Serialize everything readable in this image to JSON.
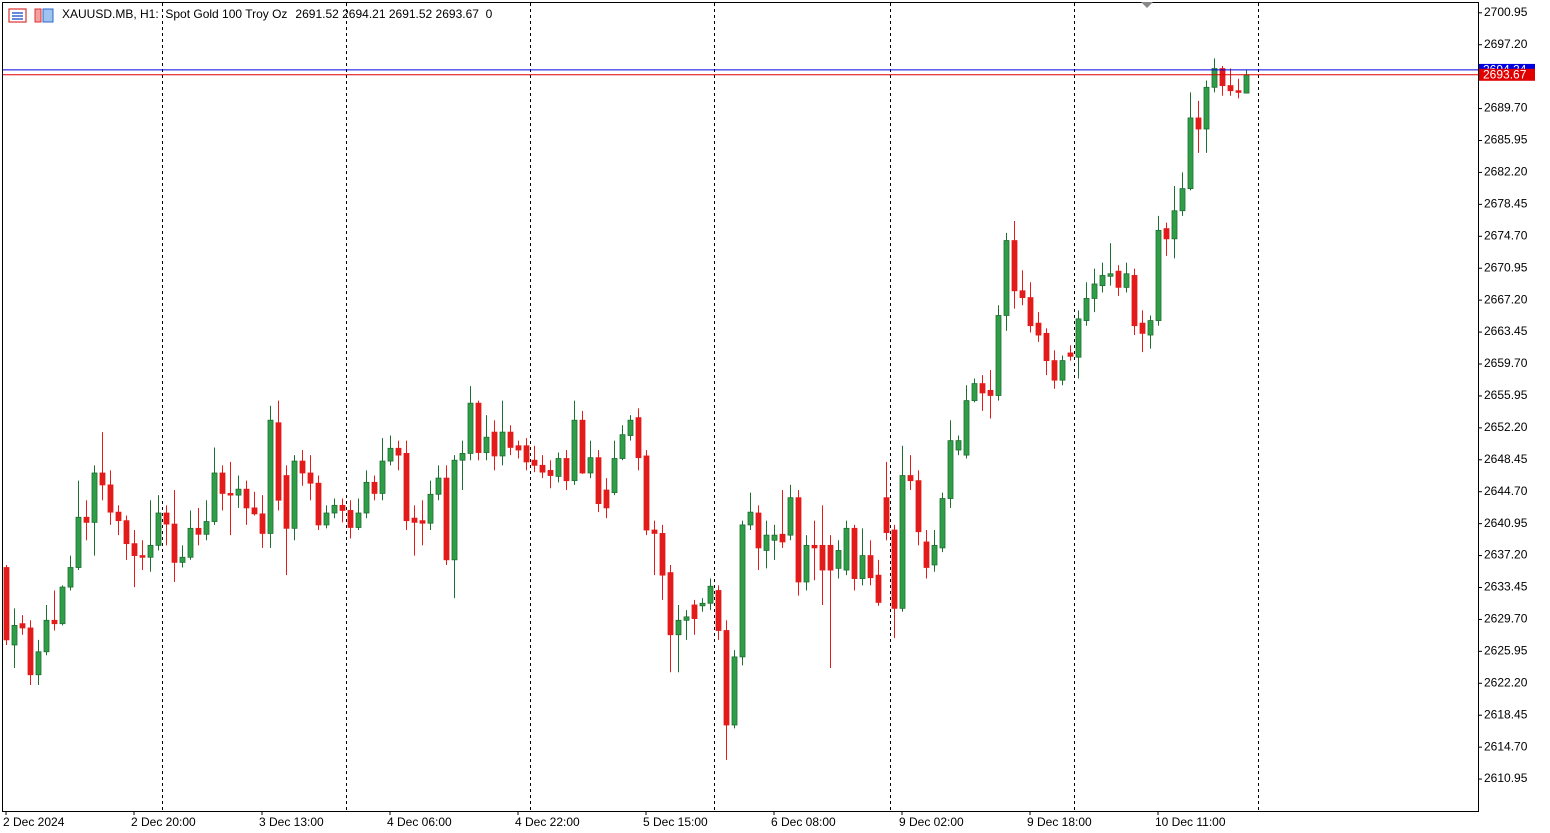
{
  "chart_data": {
    "type": "candlestick",
    "title": "XAUUSD.MB, H1:  Spot Gold 100 Troy Oz",
    "header_values": "2691.52 2694.21 2691.52 2693.67  0",
    "categories": [
      "2 Dec 2024",
      null,
      null,
      null,
      null,
      null,
      null,
      null,
      null,
      null,
      null,
      null,
      null,
      null,
      null,
      null,
      "2 Dec 20:00",
      null,
      null,
      null,
      null,
      null,
      null,
      null,
      null,
      null,
      null,
      null,
      null,
      null,
      null,
      null,
      "3 Dec 13:00",
      null,
      null,
      null,
      null,
      null,
      null,
      null,
      null,
      null,
      null,
      null,
      null,
      null,
      null,
      null,
      "4 Dec 06:00",
      null,
      null,
      null,
      null,
      null,
      null,
      null,
      null,
      null,
      null,
      null,
      null,
      null,
      null,
      null,
      "4 Dec 22:00",
      null,
      null,
      null,
      null,
      null,
      null,
      null,
      null,
      null,
      null,
      null,
      null,
      null,
      null,
      null,
      "5 Dec 15:00",
      null,
      null,
      null,
      null,
      null,
      null,
      null,
      null,
      null,
      null,
      null,
      null,
      null,
      null,
      null,
      "6 Dec 08:00",
      null,
      null,
      null,
      null,
      null,
      null,
      null,
      null,
      null,
      null,
      null,
      null,
      null,
      null,
      null,
      "9 Dec 02:00",
      null,
      null,
      null,
      null,
      null,
      null,
      null,
      null,
      null,
      null,
      null,
      null,
      null,
      null,
      null,
      "9 Dec 18:00",
      null,
      null,
      null,
      null,
      null,
      null,
      null,
      null,
      null,
      null,
      null,
      null,
      null,
      null,
      null,
      "10 Dec 11:00",
      null,
      null,
      null,
      null,
      null,
      null,
      null,
      null,
      null,
      null,
      null
    ],
    "open": [
      2635.8,
      2626.7,
      2629.2,
      2628.7,
      2623.2,
      2625.9,
      2629.6,
      2629.2,
      2633.5,
      2635.8,
      2641.7,
      2641.1,
      2646.9,
      2645.5,
      2642.3,
      2641.3,
      2638.6,
      2637.2,
      2637.0,
      2638.4,
      2642.2,
      2640.9,
      2636.4,
      2637.0,
      2640.4,
      2639.7,
      2641.2,
      2646.9,
      2644.5,
      2644.3,
      2645.0,
      2642.8,
      2642.1,
      2639.8,
      2652.8,
      2646.6,
      2640.4,
      2648.3,
      2646.9,
      2645.7,
      2640.8,
      2642.2,
      2643.1,
      2642.5,
      2640.5,
      2642.2,
      2645.8,
      2644.5,
      2648.3,
      2649.8,
      2649.2,
      2641.6,
      2641.3,
      2641.0,
      2644.4,
      2646.3,
      2636.7,
      2648.4,
      2649.2,
      2655.1,
      2649.3,
      2651.7,
      2648.9,
      2651.7,
      2650.1,
      2650.1,
      2648.4,
      2647.8,
      2647.2,
      2646.5,
      2648.6,
      2646.0,
      2653.1,
      2646.9,
      2648.7,
      2644.9,
      2644.6,
      2648.6,
      2651.3,
      2653.4,
      2648.9,
      2640.2,
      2639.8,
      2635.2,
      2627.9,
      2629.6,
      2631.4,
      2631.3,
      2631.6,
      2633.1,
      2628.4,
      2617.3,
      2625.3,
      2640.8,
      2642.2,
      2637.8,
      2639.0,
      2639.7,
      2639.6,
      2644.0,
      2634.1,
      2638.4,
      2638.4,
      2638.4,
      2635.7,
      2635.5,
      2640.4,
      2634.5,
      2637.2,
      2634.9,
      2644.0,
      2640.2,
      2631.0,
      2646.6,
      2646.0,
      2638.8,
      2636.1,
      2638.1,
      2643.9,
      2649.6,
      2649.0,
      2655.4,
      2657.4,
      2656.6,
      2656.0,
      2665.4,
      2674.2,
      2668.3,
      2667.5,
      2664.5,
      2663.3,
      2660.1,
      2657.8,
      2661.0,
      2660.5,
      2664.8,
      2667.4,
      2668.9,
      2670.0,
      2670.6,
      2668.7,
      2670.1,
      2664.5,
      2663.1,
      2664.8,
      2675.6,
      2674.4,
      2677.7,
      2680.3,
      2688.6,
      2687.3,
      2692.2,
      2694.4,
      2692.4,
      2691.8,
      2691.52
    ],
    "high": [
      2636.1,
      2631.0,
      2630.2,
      2629.6,
      2627.3,
      2631.4,
      2633.1,
      2633.7,
      2637.2,
      2646.0,
      2643.7,
      2647.8,
      2651.7,
      2647.2,
      2643.1,
      2641.9,
      2640.2,
      2639.0,
      2643.7,
      2644.3,
      2643.1,
      2644.9,
      2638.4,
      2642.5,
      2642.8,
      2643.7,
      2649.9,
      2647.8,
      2648.2,
      2646.6,
      2646.0,
      2644.7,
      2644.3,
      2654.8,
      2655.4,
      2647.8,
      2649.0,
      2649.6,
      2649.0,
      2646.6,
      2643.1,
      2643.9,
      2643.9,
      2643.7,
      2643.9,
      2647.2,
      2646.6,
      2651.0,
      2651.3,
      2650.7,
      2650.7,
      2643.1,
      2643.7,
      2646.0,
      2647.8,
      2647.8,
      2649.0,
      2650.7,
      2657.1,
      2655.4,
      2653.7,
      2653.1,
      2655.4,
      2652.5,
      2650.7,
      2651.0,
      2650.1,
      2649.0,
      2648.4,
      2649.3,
      2649.6,
      2655.4,
      2654.2,
      2650.7,
      2649.6,
      2646.3,
      2650.7,
      2652.5,
      2653.7,
      2654.5,
      2649.6,
      2641.3,
      2640.8,
      2636.1,
      2631.4,
      2630.8,
      2632.0,
      2632.2,
      2634.5,
      2633.7,
      2629.6,
      2626.1,
      2641.3,
      2644.6,
      2643.1,
      2641.3,
      2640.8,
      2644.9,
      2645.5,
      2644.9,
      2639.6,
      2641.3,
      2643.1,
      2639.6,
      2639.0,
      2641.3,
      2640.8,
      2640.4,
      2639.0,
      2636.7,
      2648.2,
      2640.8,
      2650.1,
      2649.0,
      2647.2,
      2640.2,
      2640.2,
      2644.6,
      2653.1,
      2651.3,
      2657.2,
      2658.0,
      2658.4,
      2659.0,
      2666.6,
      2675.1,
      2676.5,
      2670.7,
      2669.3,
      2665.8,
      2663.9,
      2661.3,
      2660.7,
      2661.9,
      2666.0,
      2669.3,
      2670.9,
      2671.6,
      2673.9,
      2671.3,
      2671.6,
      2670.9,
      2666.0,
      2665.4,
      2677.1,
      2676.3,
      2680.6,
      2682.2,
      2691.6,
      2690.6,
      2693.0,
      2695.6,
      2694.7,
      2694.4,
      2693.2,
      2694.21
    ],
    "low": [
      2626.7,
      2624.0,
      2627.9,
      2622.0,
      2622.0,
      2625.5,
      2628.4,
      2629.0,
      2633.1,
      2635.5,
      2639.0,
      2637.2,
      2643.7,
      2640.8,
      2639.6,
      2636.7,
      2633.5,
      2635.5,
      2635.3,
      2637.8,
      2638.4,
      2634.1,
      2635.8,
      2636.7,
      2638.4,
      2639.0,
      2640.8,
      2642.5,
      2639.6,
      2642.8,
      2640.8,
      2641.9,
      2638.1,
      2638.1,
      2642.5,
      2634.9,
      2639.0,
      2645.4,
      2643.7,
      2640.2,
      2640.4,
      2641.6,
      2641.1,
      2639.2,
      2640.2,
      2641.6,
      2643.7,
      2643.7,
      2647.8,
      2647.2,
      2640.2,
      2637.2,
      2638.4,
      2640.2,
      2643.7,
      2636.1,
      2632.2,
      2644.9,
      2648.4,
      2648.4,
      2648.4,
      2647.2,
      2647.8,
      2649.0,
      2648.6,
      2647.2,
      2647.0,
      2646.3,
      2645.1,
      2645.8,
      2644.9,
      2645.5,
      2646.8,
      2646.3,
      2642.3,
      2641.6,
      2644.3,
      2648.4,
      2650.7,
      2647.2,
      2639.6,
      2634.9,
      2632.0,
      2623.5,
      2623.5,
      2627.3,
      2627.9,
      2630.6,
      2630.8,
      2627.3,
      2613.2,
      2616.9,
      2624.3,
      2640.2,
      2635.5,
      2635.7,
      2636.7,
      2638.1,
      2639.0,
      2632.5,
      2633.1,
      2634.3,
      2631.4,
      2624.0,
      2634.5,
      2634.9,
      2633.1,
      2633.7,
      2633.7,
      2631.3,
      2639.0,
      2627.5,
      2630.6,
      2644.9,
      2638.4,
      2634.5,
      2635.3,
      2637.6,
      2642.8,
      2649.0,
      2648.6,
      2655.2,
      2654.2,
      2653.3,
      2655.4,
      2663.6,
      2666.2,
      2666.6,
      2663.4,
      2662.3,
      2658.4,
      2656.8,
      2657.2,
      2660.1,
      2658.0,
      2664.2,
      2665.8,
      2668.1,
      2668.9,
      2667.7,
      2668.1,
      2663.1,
      2661.1,
      2661.5,
      2664.2,
      2672.4,
      2672.1,
      2677.1,
      2680.1,
      2684.5,
      2684.5,
      2691.6,
      2691.2,
      2691.2,
      2690.9,
      2691.52
    ],
    "close": [
      2627.3,
      2629.0,
      2628.7,
      2623.2,
      2625.9,
      2629.6,
      2629.2,
      2633.5,
      2635.8,
      2641.7,
      2641.1,
      2646.9,
      2645.5,
      2642.3,
      2641.3,
      2638.6,
      2637.2,
      2637.0,
      2638.4,
      2642.2,
      2640.9,
      2636.4,
      2637.0,
      2640.4,
      2639.7,
      2641.2,
      2646.9,
      2644.5,
      2644.3,
      2645.0,
      2642.8,
      2642.1,
      2639.8,
      2653.1,
      2643.7,
      2640.4,
      2648.3,
      2646.9,
      2645.7,
      2640.8,
      2642.2,
      2643.1,
      2642.5,
      2640.5,
      2642.2,
      2645.8,
      2644.5,
      2648.3,
      2649.8,
      2649.0,
      2641.3,
      2641.1,
      2641.0,
      2644.4,
      2646.3,
      2636.7,
      2648.4,
      2649.2,
      2655.1,
      2649.3,
      2651.1,
      2648.9,
      2651.7,
      2649.9,
      2649.6,
      2648.2,
      2647.8,
      2647.0,
      2646.6,
      2648.6,
      2646.0,
      2653.1,
      2646.9,
      2648.7,
      2643.3,
      2642.8,
      2648.6,
      2651.4,
      2653.1,
      2648.7,
      2640.2,
      2639.8,
      2634.9,
      2627.9,
      2629.6,
      2630.0,
      2629.8,
      2631.6,
      2633.6,
      2628.4,
      2617.3,
      2625.3,
      2640.8,
      2642.3,
      2638.1,
      2639.6,
      2639.6,
      2638.8,
      2644.0,
      2634.1,
      2638.4,
      2638.1,
      2635.5,
      2635.5,
      2637.8,
      2640.4,
      2634.5,
      2637.2,
      2634.6,
      2631.7,
      2639.9,
      2631.0,
      2646.6,
      2646.0,
      2640.0,
      2635.8,
      2638.4,
      2643.9,
      2650.7,
      2650.7,
      2655.4,
      2657.4,
      2656.3,
      2656.0,
      2665.4,
      2674.2,
      2668.3,
      2667.5,
      2664.2,
      2663.1,
      2660.1,
      2657.8,
      2660.1,
      2660.6,
      2665.0,
      2667.4,
      2669.1,
      2670.1,
      2670.3,
      2668.7,
      2670.3,
      2664.2,
      2663.3,
      2664.8,
      2675.4,
      2674.4,
      2677.7,
      2680.3,
      2688.6,
      2687.3,
      2692.2,
      2694.4,
      2692.4,
      2691.8,
      2691.6,
      2693.67
    ],
    "up_color": "#2f9e48",
    "up_edge": "#1d6e31",
    "down_color": "#e41b1b",
    "ylim": [
      2607.2,
      2702.1
    ],
    "yticks": [
      2700.95,
      {
        "value": 2697.2,
        "label": "2697.20"
      },
      {
        "value": 2689.7,
        "label": "2689.70"
      },
      2685.95,
      {
        "value": 2682.2,
        "label": "2682.20"
      },
      2678.45,
      {
        "value": 2674.7,
        "label": "2674.70"
      },
      2670.95,
      {
        "value": 2667.2,
        "label": "2667.20"
      },
      2663.45,
      {
        "value": 2659.7,
        "label": "2659.70"
      },
      2655.95,
      {
        "value": 2652.2,
        "label": "2652.20"
      },
      2648.45,
      {
        "value": 2644.7,
        "label": "2644.70"
      },
      2640.95,
      {
        "value": 2637.2,
        "label": "2637.20"
      },
      2633.45,
      {
        "value": 2629.7,
        "label": "2629.70"
      },
      2625.95,
      {
        "value": 2622.2,
        "label": "2622.20"
      },
      2618.45,
      {
        "value": 2614.7,
        "label": "2614.70"
      },
      2610.95
    ],
    "ask_line": {
      "value": 2694.24,
      "color": "#0000e0"
    },
    "bid_line": {
      "value": 2693.67,
      "color": "#e00000"
    }
  }
}
